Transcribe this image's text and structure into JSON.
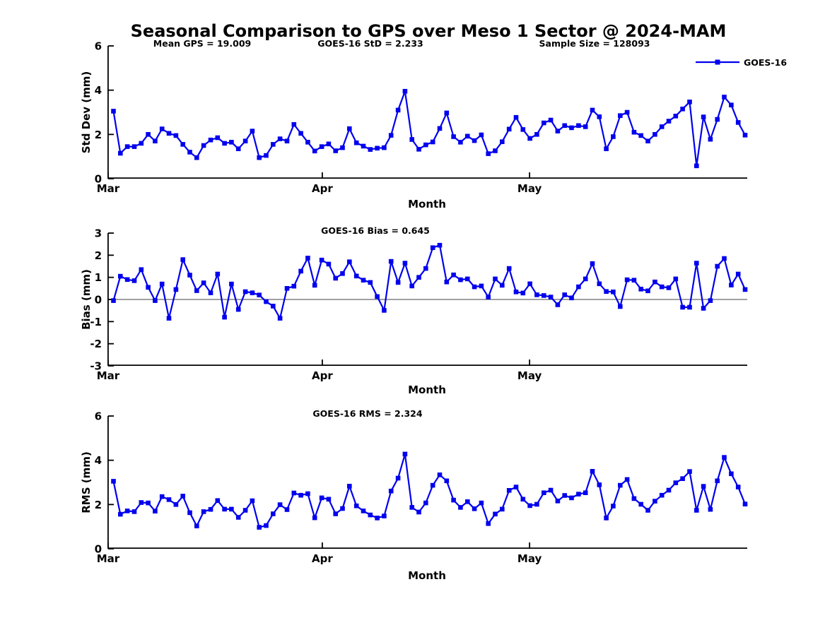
{
  "title": "Seasonal Comparison to GPS over Meso 1 Sector @ 2024-MAM",
  "legend": {
    "label": "GOES-16"
  },
  "colors": {
    "series": "#0000EE",
    "axis": "#000000",
    "zero_line": "#808080",
    "text": "#000000"
  },
  "chart_data": [
    {
      "id": "stddev",
      "type": "line",
      "ylabel": "Std Dev (mm)",
      "xlabel": "Month",
      "ylim": [
        0,
        6
      ],
      "yticks": [
        0,
        2,
        4,
        6
      ],
      "xtick_labels": [
        "Mar",
        "Apr",
        "May"
      ],
      "xtick_positions_days": [
        0,
        31,
        61
      ],
      "x_range_days": [
        0,
        91
      ],
      "grid": false,
      "legend_position": "top-right-outside",
      "annotations": [
        {
          "text": "Mean GPS = 19.009"
        },
        {
          "text": "GOES-16 StD = 2.233"
        },
        {
          "text": "Sample Size = 128093"
        }
      ],
      "series": [
        {
          "name": "GOES-16",
          "marker": "square",
          "values": [
            3.05,
            1.15,
            1.45,
            1.45,
            1.6,
            2.0,
            1.7,
            2.25,
            2.05,
            1.95,
            1.55,
            1.2,
            0.95,
            1.5,
            1.75,
            1.85,
            1.6,
            1.65,
            1.35,
            1.7,
            2.15,
            0.95,
            1.05,
            1.55,
            1.8,
            1.7,
            2.45,
            2.05,
            1.65,
            1.25,
            1.45,
            1.57,
            1.26,
            1.4,
            2.26,
            1.62,
            1.47,
            1.32,
            1.38,
            1.4,
            1.96,
            3.1,
            3.95,
            1.77,
            1.33,
            1.53,
            1.66,
            2.27,
            2.97,
            1.9,
            1.65,
            1.92,
            1.72,
            1.98,
            1.13,
            1.26,
            1.67,
            2.24,
            2.77,
            2.22,
            1.82,
            2.0,
            2.52,
            2.65,
            2.15,
            2.4,
            2.3,
            2.4,
            2.35,
            3.1,
            2.8,
            1.35,
            1.9,
            2.85,
            3.0,
            2.1,
            1.95,
            1.7,
            2.0,
            2.35,
            2.6,
            2.83,
            3.15,
            3.47,
            0.58,
            2.79,
            1.78,
            2.68,
            3.69,
            3.33,
            2.54,
            1.97
          ]
        }
      ]
    },
    {
      "id": "bias",
      "type": "line",
      "ylabel": "Bias (mm)",
      "xlabel": "Month",
      "ylim": [
        -3,
        3
      ],
      "yticks": [
        3,
        2,
        1,
        0,
        -1,
        -2,
        -3
      ],
      "zero_line": 0,
      "xtick_labels": [
        "Mar",
        "Apr",
        "May"
      ],
      "xtick_positions_days": [
        0,
        31,
        61
      ],
      "x_range_days": [
        0,
        91
      ],
      "grid": false,
      "annotations": [
        {
          "text": "GOES-16 Bias = 0.645"
        }
      ],
      "series": [
        {
          "name": "GOES-16",
          "marker": "square",
          "values": [
            -0.05,
            1.05,
            0.9,
            0.85,
            1.35,
            0.55,
            -0.05,
            0.7,
            -0.85,
            0.45,
            1.8,
            1.1,
            0.4,
            0.75,
            0.3,
            1.15,
            -0.8,
            0.7,
            -0.45,
            0.35,
            0.3,
            0.2,
            -0.1,
            -0.3,
            -0.85,
            0.5,
            0.6,
            1.28,
            1.87,
            0.64,
            1.78,
            1.6,
            0.96,
            1.17,
            1.7,
            1.06,
            0.87,
            0.77,
            0.13,
            -0.49,
            1.72,
            0.77,
            1.64,
            0.61,
            1.0,
            1.4,
            2.34,
            2.45,
            0.79,
            1.11,
            0.89,
            0.93,
            0.57,
            0.61,
            0.11,
            0.93,
            0.64,
            1.4,
            0.34,
            0.29,
            0.71,
            0.21,
            0.18,
            0.11,
            -0.24,
            0.21,
            0.07,
            0.57,
            0.93,
            1.62,
            0.71,
            0.36,
            0.34,
            -0.32,
            0.89,
            0.87,
            0.47,
            0.39,
            0.79,
            0.57,
            0.53,
            0.93,
            -0.35,
            -0.35,
            1.64,
            -0.4,
            -0.05,
            1.5,
            1.85,
            0.65,
            1.15,
            0.45
          ]
        }
      ]
    },
    {
      "id": "rms",
      "type": "line",
      "ylabel": "RMS (mm)",
      "xlabel": "Month",
      "ylim": [
        0,
        6
      ],
      "yticks": [
        0,
        2,
        4,
        6
      ],
      "xtick_labels": [
        "Mar",
        "Apr",
        "May"
      ],
      "xtick_positions_days": [
        0,
        31,
        61
      ],
      "x_range_days": [
        0,
        91
      ],
      "grid": false,
      "annotations": [
        {
          "text": "GOES-16 RMS = 2.324"
        }
      ],
      "series": [
        {
          "name": "GOES-16",
          "marker": "square",
          "values": [
            3.05,
            1.56,
            1.71,
            1.68,
            2.09,
            2.07,
            1.7,
            2.36,
            2.22,
            2.0,
            2.38,
            1.63,
            1.03,
            1.68,
            1.78,
            2.18,
            1.79,
            1.79,
            1.42,
            1.74,
            2.17,
            0.97,
            1.05,
            1.58,
            1.99,
            1.77,
            2.52,
            2.42,
            2.49,
            1.4,
            2.3,
            2.24,
            1.58,
            1.82,
            2.83,
            1.94,
            1.71,
            1.53,
            1.39,
            1.48,
            2.61,
            3.19,
            4.28,
            1.87,
            1.66,
            2.07,
            2.87,
            3.34,
            3.07,
            2.2,
            1.87,
            2.13,
            1.81,
            2.07,
            1.14,
            1.57,
            1.79,
            2.64,
            2.79,
            2.24,
            1.95,
            2.01,
            2.53,
            2.65,
            2.16,
            2.41,
            2.3,
            2.47,
            2.53,
            3.5,
            2.89,
            1.39,
            1.93,
            2.87,
            3.13,
            2.27,
            2.01,
            1.74,
            2.15,
            2.42,
            2.65,
            2.98,
            3.17,
            3.49,
            1.74,
            2.82,
            1.78,
            3.07,
            4.13,
            3.39,
            2.79,
            2.02
          ]
        }
      ]
    }
  ]
}
